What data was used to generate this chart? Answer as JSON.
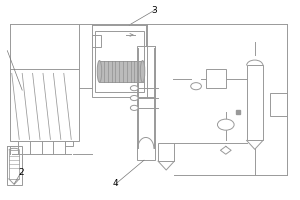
{
  "lc": "#999999",
  "lw": 0.7,
  "fig_width": 3.0,
  "fig_height": 2.0,
  "dpi": 100,
  "label2": [
    0.065,
    0.13
  ],
  "label3": [
    0.515,
    0.955
  ],
  "label4": [
    0.385,
    0.075
  ]
}
